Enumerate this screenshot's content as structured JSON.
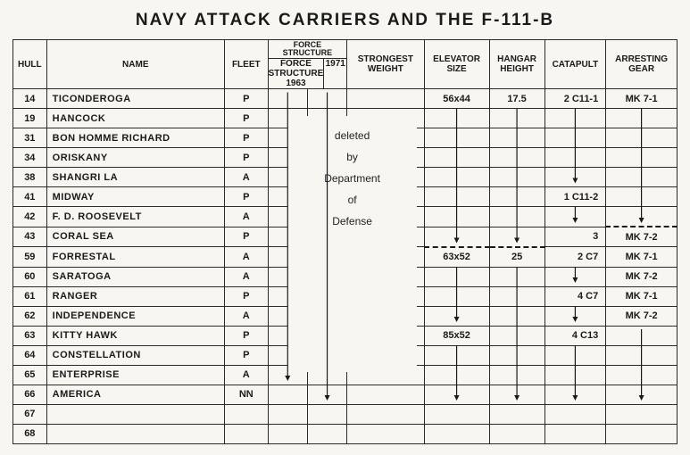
{
  "title": "NAVY ATTACK CARRIERS AND THE F-111-B",
  "columns": {
    "hull": "HULL",
    "name": "NAME",
    "fleet": "FLEET",
    "force1963": "FORCE STRUCTURE 1963",
    "force1971": "1971",
    "strongest": "STRONGEST WEIGHT",
    "elevator": "ELEVATOR SIZE",
    "hangar": "HANGAR HEIGHT",
    "catapult": "CATAPULT",
    "arresting": "ARRESTING GEAR"
  },
  "deleted_text": [
    "deleted",
    "by",
    "Department",
    "of",
    "Defense"
  ],
  "rows": [
    {
      "hull": "14",
      "name": "TICONDEROGA",
      "fleet": "P",
      "elevator": "56x44",
      "hangar": "17.5",
      "catapult": "2 C11-1",
      "arresting": "MK 7-1"
    },
    {
      "hull": "19",
      "name": "HANCOCK",
      "fleet": "P"
    },
    {
      "hull": "31",
      "name": "BON HOMME RICHARD",
      "fleet": "P"
    },
    {
      "hull": "34",
      "name": "ORISKANY",
      "fleet": "P"
    },
    {
      "hull": "38",
      "name": "SHANGRI LA",
      "fleet": "A"
    },
    {
      "hull": "41",
      "name": "MIDWAY",
      "fleet": "P",
      "catapult": "1 C11-2"
    },
    {
      "hull": "42",
      "name": "F. D. ROOSEVELT",
      "fleet": "A"
    },
    {
      "hull": "43",
      "name": "CORAL SEA",
      "fleet": "P",
      "catapult": "3",
      "arresting": "MK 7-2",
      "dash_ag": true
    },
    {
      "hull": "59",
      "name": "FORRESTAL",
      "fleet": "A",
      "elevator": "63x52",
      "hangar": "25",
      "catapult": "2 C7",
      "arresting": "MK 7-1",
      "dash_es": true,
      "dash_hh": true
    },
    {
      "hull": "60",
      "name": "SARATOGA",
      "fleet": "A",
      "arresting": "MK 7-2"
    },
    {
      "hull": "61",
      "name": "RANGER",
      "fleet": "P",
      "catapult": "4 C7",
      "arresting": "MK 7-1"
    },
    {
      "hull": "62",
      "name": "INDEPENDENCE",
      "fleet": "A",
      "arresting": "MK 7-2"
    },
    {
      "hull": "63",
      "name": "KITTY HAWK",
      "fleet": "P",
      "elevator": "85x52",
      "catapult": "4 C13"
    },
    {
      "hull": "64",
      "name": "CONSTELLATION",
      "fleet": "P"
    },
    {
      "hull": "65",
      "name": "ENTERPRISE",
      "fleet": "A"
    },
    {
      "hull": "66",
      "name": "AMERICA",
      "fleet": "NN"
    },
    {
      "hull": "67",
      "name": "",
      "fleet": ""
    },
    {
      "hull": "68",
      "name": "",
      "fleet": ""
    }
  ],
  "style": {
    "bg": "#f8f6f0",
    "ink": "#1a1a1a",
    "title_fontsize": 19,
    "cell_fontsize": 11,
    "header_fontsize": 10
  }
}
